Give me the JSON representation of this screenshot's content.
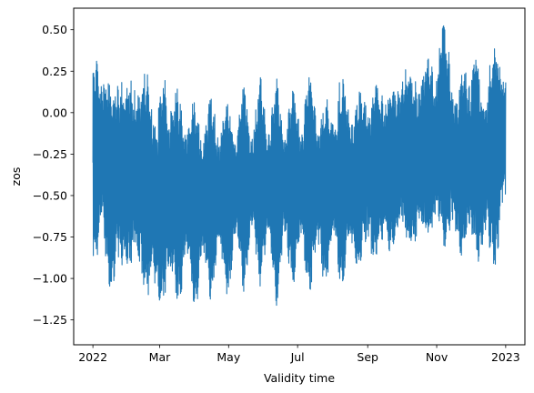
{
  "chart_data": {
    "type": "line",
    "title": "",
    "xlabel": "Validity time",
    "ylabel": "zos",
    "x_range": [
      "2022-01-01",
      "2023-01-01"
    ],
    "xlim": [
      "2021-12-15",
      "2023-01-18"
    ],
    "ylim": [
      -1.4,
      0.63
    ],
    "x_ticks": [
      {
        "date": "2022-01-01",
        "label": "2022"
      },
      {
        "date": "2022-03-01",
        "label": "Mar"
      },
      {
        "date": "2022-05-01",
        "label": "May"
      },
      {
        "date": "2022-07-01",
        "label": "Jul"
      },
      {
        "date": "2022-09-01",
        "label": "Sep"
      },
      {
        "date": "2022-11-01",
        "label": "Nov"
      },
      {
        "date": "2023-01-01",
        "label": "2023"
      }
    ],
    "y_ticks": [
      {
        "value": 0.5,
        "label": "0.50"
      },
      {
        "value": 0.25,
        "label": "0.25"
      },
      {
        "value": 0.0,
        "label": "0.00"
      },
      {
        "value": -0.25,
        "label": "−0.25"
      },
      {
        "value": -0.5,
        "label": "−0.50"
      },
      {
        "value": -0.75,
        "label": "−0.75"
      },
      {
        "value": -1.0,
        "label": "−1.00"
      },
      {
        "value": -1.25,
        "label": "−1.25"
      }
    ],
    "series": [
      {
        "name": "zos",
        "color": "#1f77b4",
        "description": "hourly sea surface height with tidal oscillation",
        "envelope": {
          "day_of_year": [
            0,
            4,
            8,
            15,
            22,
            29,
            36,
            43,
            50,
            57,
            64,
            71,
            78,
            85,
            92,
            99,
            106,
            113,
            120,
            127,
            134,
            141,
            148,
            155,
            162,
            169,
            176,
            183,
            190,
            197,
            204,
            211,
            218,
            225,
            232,
            239,
            246,
            253,
            260,
            267,
            274,
            281,
            288,
            295,
            302,
            309,
            316,
            323,
            330,
            337,
            344,
            351,
            358,
            365
          ],
          "max": [
            0.25,
            0.45,
            0.42,
            0.15,
            0.45,
            0.1,
            0.43,
            0.15,
            0.45,
            -0.05,
            0.42,
            0.08,
            0.2,
            -0.02,
            0.14,
            -0.02,
            0.12,
            -0.02,
            0.12,
            -0.02,
            0.18,
            -0.02,
            0.22,
            0.0,
            0.22,
            0.02,
            0.14,
            0.02,
            0.25,
            0.1,
            0.1,
            0.05,
            0.28,
            0.1,
            0.15,
            0.1,
            0.25,
            0.12,
            0.3,
            0.1,
            0.45,
            0.2,
            0.35,
            0.3,
            0.4,
            0.54,
            0.45,
            0.1,
            0.38,
            0.42,
            0.2,
            0.38,
            0.43,
            0.4
          ],
          "min": [
            -0.85,
            -0.98,
            -0.85,
            -1.05,
            -1.18,
            -0.85,
            -1.15,
            -0.95,
            -1.33,
            -1.05,
            -1.35,
            -1.0,
            -1.25,
            -0.95,
            -1.28,
            -0.95,
            -1.2,
            -0.9,
            -1.15,
            -0.85,
            -1.1,
            -0.8,
            -1.05,
            -0.85,
            -1.18,
            -0.85,
            -1.08,
            -0.85,
            -1.15,
            -0.9,
            -1.1,
            -0.85,
            -1.15,
            -0.85,
            -1.1,
            -0.8,
            -1.02,
            -0.78,
            -1.0,
            -0.75,
            -0.9,
            -0.8,
            -0.95,
            -0.7,
            -0.85,
            -0.78,
            -0.88,
            -0.8,
            -0.98,
            -0.85,
            -0.95,
            -0.9,
            -0.92,
            -0.62
          ],
          "mean": [
            -0.3,
            -0.25,
            -0.3,
            -0.45,
            -0.4,
            -0.4,
            -0.38,
            -0.45,
            -0.45,
            -0.55,
            -0.5,
            -0.55,
            -0.55,
            -0.5,
            -0.55,
            -0.5,
            -0.5,
            -0.45,
            -0.45,
            -0.45,
            -0.45,
            -0.42,
            -0.45,
            -0.42,
            -0.45,
            -0.4,
            -0.45,
            -0.4,
            -0.42,
            -0.4,
            -0.45,
            -0.42,
            -0.4,
            -0.42,
            -0.42,
            -0.38,
            -0.4,
            -0.35,
            -0.4,
            -0.35,
            -0.25,
            -0.3,
            -0.3,
            -0.22,
            -0.2,
            -0.15,
            -0.25,
            -0.35,
            -0.3,
            -0.25,
            -0.35,
            -0.3,
            -0.25,
            -0.3
          ]
        }
      }
    ]
  }
}
